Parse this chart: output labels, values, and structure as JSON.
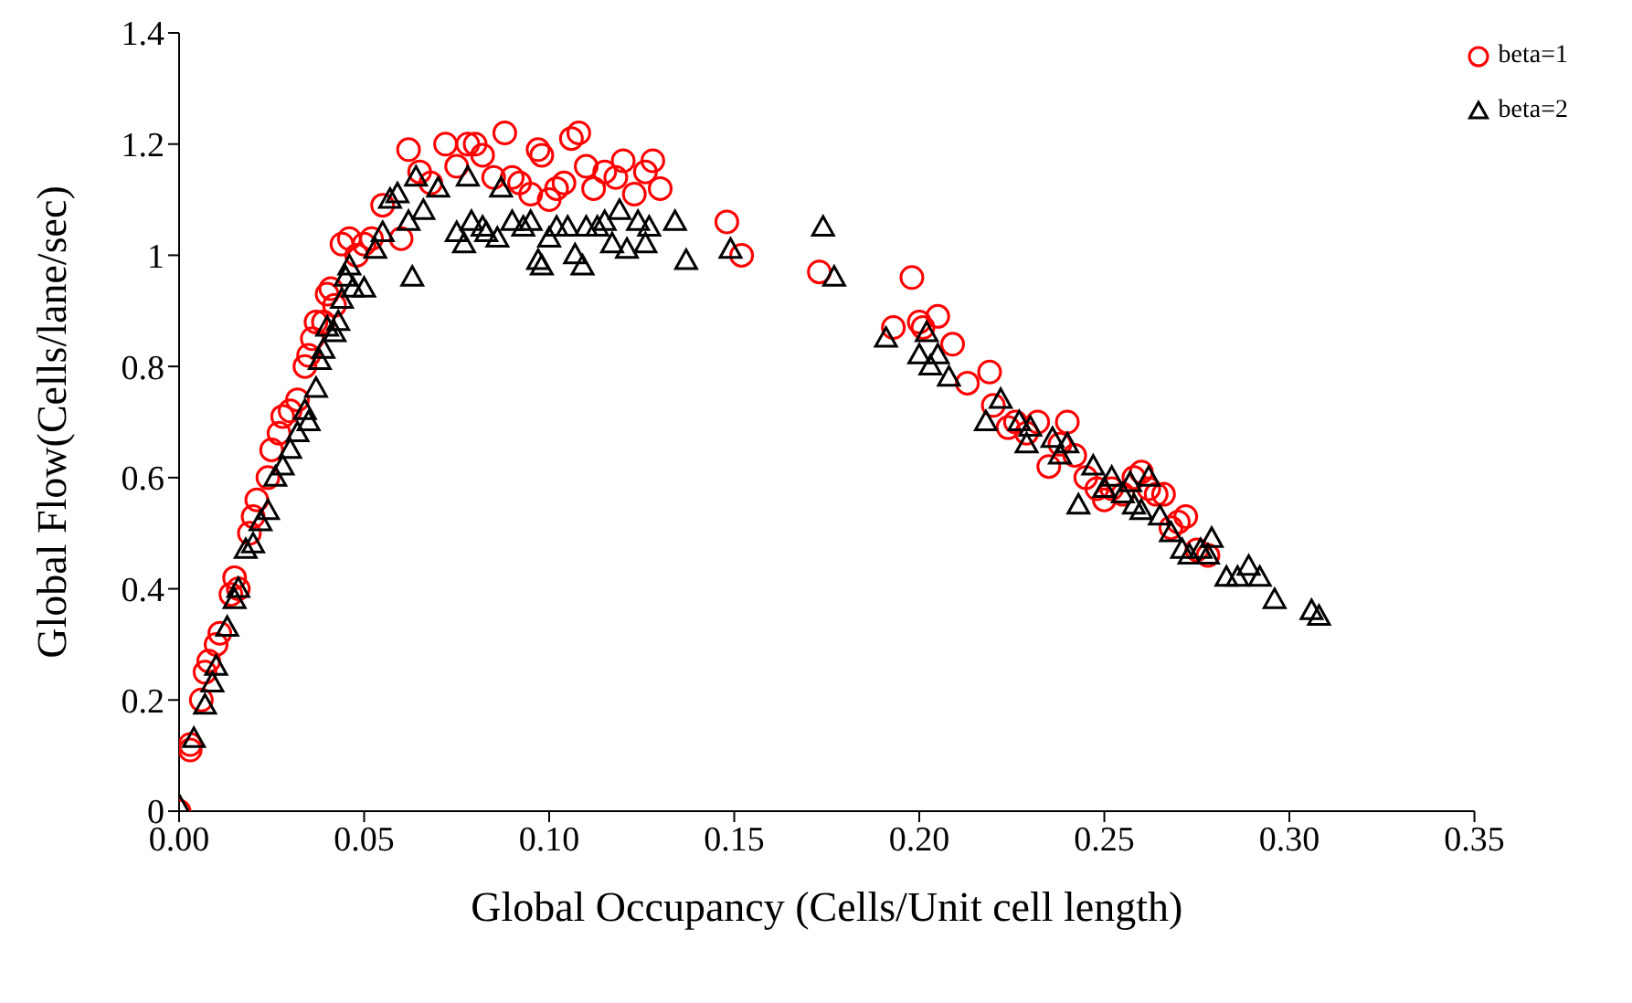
{
  "chart_data": {
    "type": "scatter",
    "xlabel": "Global Occupancy (Cells/Unit cell length)",
    "ylabel": "Global Flow(Cells/lane/sec)",
    "xlim": [
      0,
      0.35
    ],
    "xticks": [
      {
        "value": 0,
        "label": "0.00"
      },
      {
        "value": 0.05,
        "label": "0.05"
      },
      {
        "value": 0.1,
        "label": "0.10"
      },
      {
        "value": 0.15,
        "label": "0.15"
      },
      {
        "value": 0.2,
        "label": "0.20"
      },
      {
        "value": 0.25,
        "label": "0.25"
      },
      {
        "value": 0.3,
        "label": "0.30"
      },
      {
        "value": 0.35,
        "label": "0.35"
      }
    ],
    "ylim": [
      0,
      1.4
    ],
    "yticks": [
      0,
      0.2,
      0.4,
      0.6,
      0.8,
      1,
      1.2,
      1.4
    ],
    "grid": false,
    "legend": "top right",
    "series": [
      {
        "name": "beta=1",
        "color": "#ff0000",
        "marker": "circle",
        "x": [
          0.0,
          0.003,
          0.003,
          0.006,
          0.007,
          0.008,
          0.01,
          0.011,
          0.014,
          0.015,
          0.016,
          0.019,
          0.02,
          0.021,
          0.024,
          0.025,
          0.027,
          0.028,
          0.03,
          0.032,
          0.034,
          0.035,
          0.036,
          0.037,
          0.039,
          0.04,
          0.041,
          0.042,
          0.044,
          0.046,
          0.048,
          0.05,
          0.052,
          0.055,
          0.06,
          0.062,
          0.065,
          0.068,
          0.072,
          0.075,
          0.078,
          0.08,
          0.082,
          0.085,
          0.088,
          0.09,
          0.092,
          0.095,
          0.097,
          0.098,
          0.1,
          0.102,
          0.104,
          0.106,
          0.108,
          0.11,
          0.112,
          0.115,
          0.118,
          0.12,
          0.123,
          0.126,
          0.128,
          0.13,
          0.148,
          0.152,
          0.173,
          0.193,
          0.198,
          0.2,
          0.201,
          0.205,
          0.209,
          0.213,
          0.219,
          0.22,
          0.224,
          0.226,
          0.229,
          0.232,
          0.235,
          0.238,
          0.24,
          0.242,
          0.245,
          0.248,
          0.25,
          0.252,
          0.255,
          0.258,
          0.26,
          0.262,
          0.264,
          0.266,
          0.268,
          0.27,
          0.272,
          0.275,
          0.278
        ],
        "values": [
          0.0,
          0.12,
          0.11,
          0.2,
          0.25,
          0.27,
          0.3,
          0.32,
          0.39,
          0.42,
          0.4,
          0.5,
          0.53,
          0.56,
          0.6,
          0.65,
          0.68,
          0.71,
          0.72,
          0.74,
          0.8,
          0.82,
          0.85,
          0.88,
          0.88,
          0.93,
          0.94,
          0.91,
          1.02,
          1.03,
          1.0,
          1.02,
          1.03,
          1.09,
          1.03,
          1.19,
          1.15,
          1.13,
          1.2,
          1.16,
          1.2,
          1.2,
          1.18,
          1.14,
          1.22,
          1.14,
          1.13,
          1.11,
          1.19,
          1.18,
          1.1,
          1.12,
          1.13,
          1.21,
          1.22,
          1.16,
          1.12,
          1.15,
          1.14,
          1.17,
          1.11,
          1.15,
          1.17,
          1.12,
          1.06,
          1.0,
          0.97,
          0.87,
          0.96,
          0.88,
          0.87,
          0.89,
          0.84,
          0.77,
          0.79,
          0.73,
          0.69,
          0.7,
          0.68,
          0.7,
          0.62,
          0.66,
          0.7,
          0.64,
          0.6,
          0.58,
          0.56,
          0.58,
          0.57,
          0.6,
          0.61,
          0.58,
          0.57,
          0.57,
          0.51,
          0.52,
          0.53,
          0.47,
          0.46
        ]
      },
      {
        "name": "beta=2",
        "color": "#000000",
        "marker": "triangle",
        "x": [
          0.0,
          0.004,
          0.007,
          0.009,
          0.01,
          0.013,
          0.015,
          0.016,
          0.018,
          0.02,
          0.022,
          0.024,
          0.026,
          0.028,
          0.03,
          0.032,
          0.034,
          0.035,
          0.037,
          0.038,
          0.039,
          0.04,
          0.042,
          0.043,
          0.044,
          0.045,
          0.046,
          0.047,
          0.05,
          0.053,
          0.055,
          0.057,
          0.059,
          0.062,
          0.063,
          0.064,
          0.066,
          0.07,
          0.075,
          0.077,
          0.078,
          0.079,
          0.082,
          0.083,
          0.086,
          0.087,
          0.09,
          0.093,
          0.095,
          0.097,
          0.098,
          0.1,
          0.102,
          0.105,
          0.107,
          0.109,
          0.11,
          0.113,
          0.115,
          0.117,
          0.119,
          0.121,
          0.124,
          0.126,
          0.127,
          0.134,
          0.137,
          0.149,
          0.174,
          0.177,
          0.191,
          0.2,
          0.202,
          0.203,
          0.205,
          0.208,
          0.218,
          0.222,
          0.227,
          0.229,
          0.23,
          0.236,
          0.238,
          0.24,
          0.243,
          0.247,
          0.25,
          0.252,
          0.255,
          0.257,
          0.258,
          0.26,
          0.262,
          0.265,
          0.268,
          0.271,
          0.273,
          0.276,
          0.278,
          0.279,
          0.283,
          0.286,
          0.289,
          0.292,
          0.296,
          0.306,
          0.308
        ],
        "values": [
          0.01,
          0.13,
          0.19,
          0.23,
          0.26,
          0.33,
          0.38,
          0.4,
          0.47,
          0.48,
          0.52,
          0.54,
          0.6,
          0.62,
          0.65,
          0.68,
          0.72,
          0.7,
          0.76,
          0.81,
          0.83,
          0.87,
          0.86,
          0.88,
          0.92,
          0.96,
          0.98,
          0.94,
          0.94,
          1.01,
          1.04,
          1.1,
          1.11,
          1.06,
          0.96,
          1.14,
          1.08,
          1.12,
          1.04,
          1.02,
          1.14,
          1.06,
          1.05,
          1.04,
          1.03,
          1.12,
          1.06,
          1.05,
          1.06,
          0.99,
          0.98,
          1.03,
          1.05,
          1.05,
          1.0,
          0.98,
          1.05,
          1.05,
          1.06,
          1.02,
          1.08,
          1.01,
          1.06,
          1.02,
          1.05,
          1.06,
          0.99,
          1.01,
          1.05,
          0.96,
          0.85,
          0.82,
          0.86,
          0.8,
          0.82,
          0.78,
          0.7,
          0.74,
          0.7,
          0.66,
          0.69,
          0.67,
          0.64,
          0.66,
          0.55,
          0.62,
          0.58,
          0.6,
          0.57,
          0.59,
          0.55,
          0.54,
          0.6,
          0.53,
          0.5,
          0.47,
          0.46,
          0.47,
          0.46,
          0.49,
          0.42,
          0.42,
          0.44,
          0.42,
          0.38,
          0.36,
          0.35
        ]
      }
    ]
  }
}
